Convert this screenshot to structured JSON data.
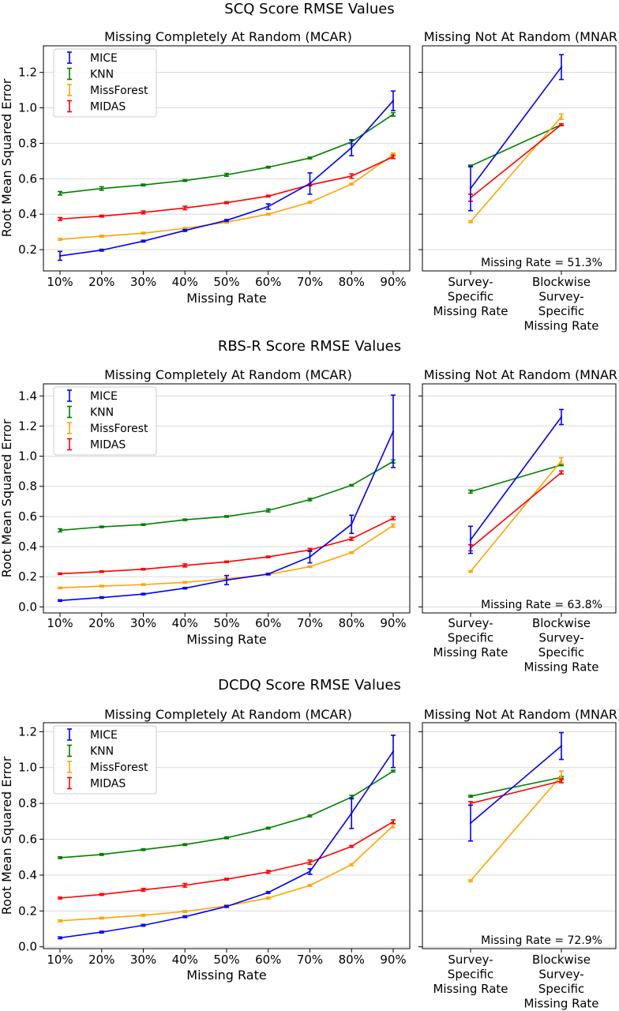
{
  "colors": {
    "MICE": "#0000ff",
    "KNN": "#008000",
    "MissForest": "#ffa500",
    "MIDAS": "#ff0000",
    "grid": "#d9d9d9"
  },
  "shared": {
    "ylabel": "Root Mean Squared Error",
    "mcar_title": "Missing Completely At Random (MCAR)",
    "mnar_title": "Missing Not At Random (MNAR)",
    "mcar_xlabel": "Missing Rate",
    "mcar_categories": [
      "10%",
      "20%",
      "30%",
      "40%",
      "50%",
      "60%",
      "70%",
      "80%",
      "90%"
    ],
    "mnar_categories": [
      [
        "Survey-",
        "Specific",
        "Missing Rate"
      ],
      [
        "Blockwise",
        "Survey-",
        "Specific",
        "Missing Rate"
      ]
    ],
    "legend": [
      "MICE",
      "KNN",
      "MissForest",
      "MIDAS"
    ]
  },
  "chart_data": [
    {
      "type": "line",
      "title": "SCQ Score RMSE Values",
      "ylim": [
        0.08,
        1.35
      ],
      "yticks": [
        0.2,
        0.4,
        0.6,
        0.8,
        1.0,
        1.2
      ],
      "ytick_labels": [
        "0.2",
        "0.4",
        "0.6",
        "0.8",
        "1.0",
        "1.2"
      ],
      "legend_position": "upper-left",
      "grid": true,
      "mcar": {
        "series": [
          {
            "name": "MICE",
            "values": [
              0.165,
              0.197,
              0.248,
              0.308,
              0.365,
              0.443,
              0.573,
              0.775,
              1.04
            ],
            "err": [
              0.025,
              0.005,
              0.005,
              0.005,
              0.005,
              0.015,
              0.06,
              0.045,
              0.055
            ]
          },
          {
            "name": "KNN",
            "values": [
              0.518,
              0.545,
              0.565,
              0.59,
              0.622,
              0.665,
              0.717,
              0.808,
              0.963
            ],
            "err": [
              0.01,
              0.01,
              0.005,
              0.005,
              0.008,
              0.005,
              0.005,
              0.01,
              0.01
            ]
          },
          {
            "name": "MissForest",
            "values": [
              0.258,
              0.276,
              0.293,
              0.32,
              0.355,
              0.4,
              0.467,
              0.57,
              0.735
            ],
            "err": [
              0.005,
              0.005,
              0.005,
              0.005,
              0.005,
              0.005,
              0.005,
              0.005,
              0.01
            ]
          },
          {
            "name": "MIDAS",
            "values": [
              0.373,
              0.389,
              0.41,
              0.435,
              0.465,
              0.502,
              0.565,
              0.615,
              0.724
            ],
            "err": [
              0.008,
              0.005,
              0.008,
              0.01,
              0.005,
              0.005,
              0.005,
              0.012,
              0.01
            ]
          }
        ]
      },
      "mnar": {
        "annotation": "Missing Rate = 51.3%",
        "series": [
          {
            "name": "MICE",
            "values": [
              0.545,
              1.23
            ],
            "err": [
              0.125,
              0.07
            ]
          },
          {
            "name": "KNN",
            "values": [
              0.672,
              0.905
            ],
            "err": [
              0.005,
              0.005
            ]
          },
          {
            "name": "MissForest",
            "values": [
              0.358,
              0.95
            ],
            "err": [
              0.005,
              0.015
            ]
          },
          {
            "name": "MIDAS",
            "values": [
              0.493,
              0.905
            ],
            "err": [
              0.02,
              0.005
            ]
          }
        ]
      }
    },
    {
      "type": "line",
      "title": "RBS-R Score RMSE Values",
      "ylim": [
        -0.04,
        1.48
      ],
      "yticks": [
        0.0,
        0.2,
        0.4,
        0.6,
        0.8,
        1.0,
        1.2,
        1.4
      ],
      "ytick_labels": [
        "0.0",
        "0.2",
        "0.4",
        "0.6",
        "0.8",
        "1.0",
        "1.2",
        "1.4"
      ],
      "legend_position": "upper-left",
      "grid": true,
      "mcar": {
        "series": [
          {
            "name": "MICE",
            "values": [
              0.042,
              0.062,
              0.085,
              0.124,
              0.178,
              0.218,
              0.332,
              0.548,
              1.165
            ],
            "err": [
              0.005,
              0.005,
              0.005,
              0.005,
              0.03,
              0.005,
              0.04,
              0.06,
              0.24
            ]
          },
          {
            "name": "KNN",
            "values": [
              0.508,
              0.531,
              0.546,
              0.578,
              0.6,
              0.64,
              0.712,
              0.807,
              0.965
            ],
            "err": [
              0.01,
              0.005,
              0.005,
              0.005,
              0.005,
              0.01,
              0.008,
              0.005,
              0.01
            ]
          },
          {
            "name": "MissForest",
            "values": [
              0.126,
              0.138,
              0.148,
              0.163,
              0.186,
              0.215,
              0.267,
              0.36,
              0.54
            ],
            "err": [
              0.005,
              0.005,
              0.005,
              0.005,
              0.005,
              0.005,
              0.005,
              0.005,
              0.01
            ]
          },
          {
            "name": "MIDAS",
            "values": [
              0.22,
              0.234,
              0.25,
              0.275,
              0.299,
              0.332,
              0.378,
              0.452,
              0.588
            ],
            "err": [
              0.005,
              0.005,
              0.005,
              0.01,
              0.005,
              0.005,
              0.01,
              0.01,
              0.01
            ]
          }
        ]
      },
      "mnar": {
        "annotation": "Missing Rate = 63.8%",
        "series": [
          {
            "name": "MICE",
            "values": [
              0.445,
              1.26
            ],
            "err": [
              0.09,
              0.05
            ]
          },
          {
            "name": "KNN",
            "values": [
              0.765,
              0.942
            ],
            "err": [
              0.01,
              0.005
            ]
          },
          {
            "name": "MissForest",
            "values": [
              0.235,
              0.97
            ],
            "err": [
              0.005,
              0.02
            ]
          },
          {
            "name": "MIDAS",
            "values": [
              0.392,
              0.892
            ],
            "err": [
              0.02,
              0.01
            ]
          }
        ]
      }
    },
    {
      "type": "line",
      "title": "DCDQ Score RMSE Values",
      "ylim": [
        -0.01,
        1.25
      ],
      "yticks": [
        0.0,
        0.2,
        0.4,
        0.6,
        0.8,
        1.0,
        1.2
      ],
      "ytick_labels": [
        "0.0",
        "0.2",
        "0.4",
        "0.6",
        "0.8",
        "1.0",
        "1.2"
      ],
      "legend_position": "upper-left",
      "grid": true,
      "mcar": {
        "series": [
          {
            "name": "MICE",
            "values": [
              0.05,
              0.082,
              0.12,
              0.168,
              0.225,
              0.303,
              0.42,
              0.745,
              1.09
            ],
            "err": [
              0.005,
              0.005,
              0.005,
              0.005,
              0.005,
              0.005,
              0.015,
              0.085,
              0.09
            ]
          },
          {
            "name": "KNN",
            "values": [
              0.497,
              0.515,
              0.542,
              0.57,
              0.608,
              0.662,
              0.73,
              0.835,
              0.98
            ],
            "err": [
              0.005,
              0.005,
              0.005,
              0.005,
              0.005,
              0.005,
              0.005,
              0.01,
              0.005
            ]
          },
          {
            "name": "MissForest",
            "values": [
              0.145,
              0.16,
              0.176,
              0.197,
              0.228,
              0.272,
              0.342,
              0.458,
              0.675
            ],
            "err": [
              0.005,
              0.005,
              0.005,
              0.005,
              0.005,
              0.005,
              0.005,
              0.005,
              0.01
            ]
          },
          {
            "name": "MIDAS",
            "values": [
              0.272,
              0.292,
              0.318,
              0.343,
              0.377,
              0.418,
              0.472,
              0.56,
              0.698
            ],
            "err": [
              0.005,
              0.005,
              0.008,
              0.01,
              0.005,
              0.008,
              0.012,
              0.005,
              0.01
            ]
          }
        ]
      },
      "mnar": {
        "annotation": "Missing Rate = 72.9%",
        "series": [
          {
            "name": "MICE",
            "values": [
              0.69,
              1.12
            ],
            "err": [
              0.1,
              0.075
            ]
          },
          {
            "name": "KNN",
            "values": [
              0.84,
              0.945
            ],
            "err": [
              0.005,
              0.005
            ]
          },
          {
            "name": "MissForest",
            "values": [
              0.368,
              0.955
            ],
            "err": [
              0.005,
              0.025
            ]
          },
          {
            "name": "MIDAS",
            "values": [
              0.8,
              0.925
            ],
            "err": [
              0.01,
              0.01
            ]
          }
        ]
      }
    }
  ]
}
